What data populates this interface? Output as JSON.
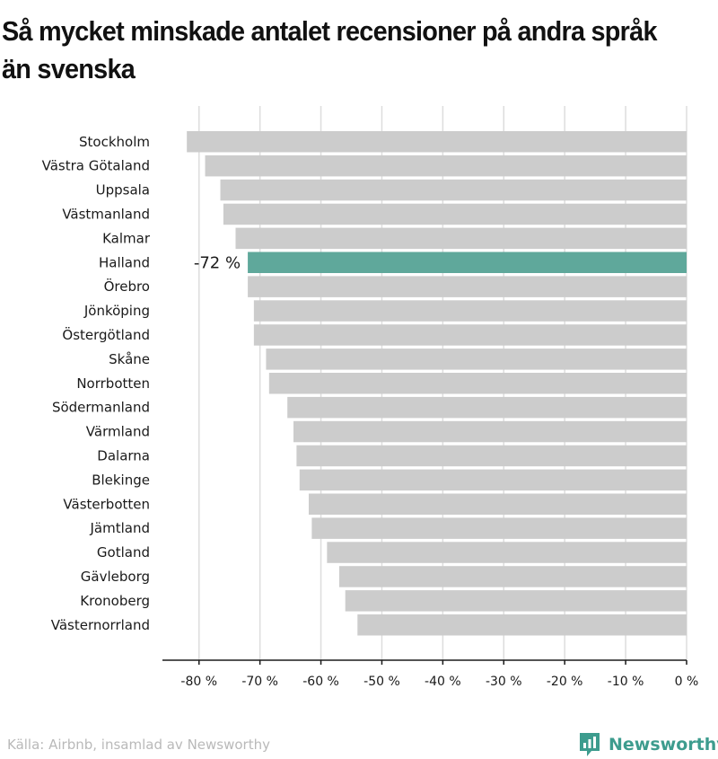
{
  "chart_data": {
    "type": "bar",
    "orientation": "horizontal",
    "title": "Så mycket minskade antalet recensioner på andra språk än svenska",
    "categories": [
      "Stockholm",
      "Västra Götaland",
      "Uppsala",
      "Västmanland",
      "Kalmar",
      "Halland",
      "Örebro",
      "Jönköping",
      "Östergötland",
      "Skåne",
      "Norrbotten",
      "Södermanland",
      "Värmland",
      "Dalarna",
      "Blekinge",
      "Västerbotten",
      "Jämtland",
      "Gotland",
      "Gävleborg",
      "Kronoberg",
      "Västernorrland"
    ],
    "values": [
      -82,
      -79,
      -76.5,
      -76,
      -74,
      -72,
      -72,
      -71,
      -71,
      -69,
      -68.5,
      -65.5,
      -64.5,
      -64,
      -63.5,
      -62,
      -61.5,
      -59,
      -57,
      -56,
      -54
    ],
    "highlight_index": 5,
    "highlight_label": "-72 %",
    "xlim": [
      -86,
      0
    ],
    "xticks": [
      -80,
      -70,
      -60,
      -50,
      -40,
      -30,
      -20,
      -10,
      0
    ],
    "xtick_labels": [
      "-80 %",
      "-70 %",
      "-60 %",
      "-50 %",
      "-40 %",
      "-30 %",
      "-20 %",
      "-10 %",
      "0 %"
    ],
    "grid": "vertical",
    "colors": {
      "bar": "#cccccc",
      "highlight": "#5fa89b",
      "grid": "#dddddd",
      "axis": "#1a1a1a"
    }
  },
  "footer": {
    "source": "Källa: Airbnb, insamlad av Newsworthy",
    "brand": "Newsworthy",
    "brand_color": "#3d9c8e",
    "brand_icon": "newsworthy-logo-icon"
  }
}
